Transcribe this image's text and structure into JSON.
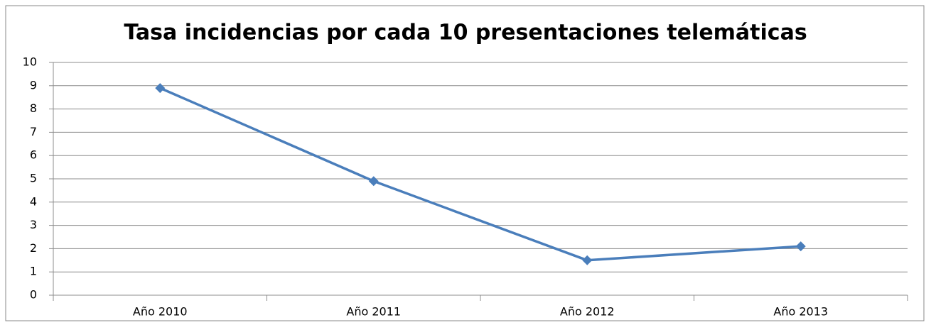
{
  "chart_data": {
    "type": "line",
    "title": "Tasa incidencias por cada 10 presentaciones telemáticas",
    "categories": [
      "Año 2010",
      "Año 2011",
      "Año 2012",
      "Año 2013"
    ],
    "series": [
      {
        "name": "Tasa incidencias",
        "color": "#4a7ebb",
        "values": [
          8.9,
          4.9,
          1.5,
          2.1
        ]
      }
    ],
    "ylim": [
      0,
      10
    ],
    "yticks": [
      0,
      1,
      2,
      3,
      4,
      5,
      6,
      7,
      8,
      9,
      10
    ],
    "grid": true,
    "legend": false
  }
}
